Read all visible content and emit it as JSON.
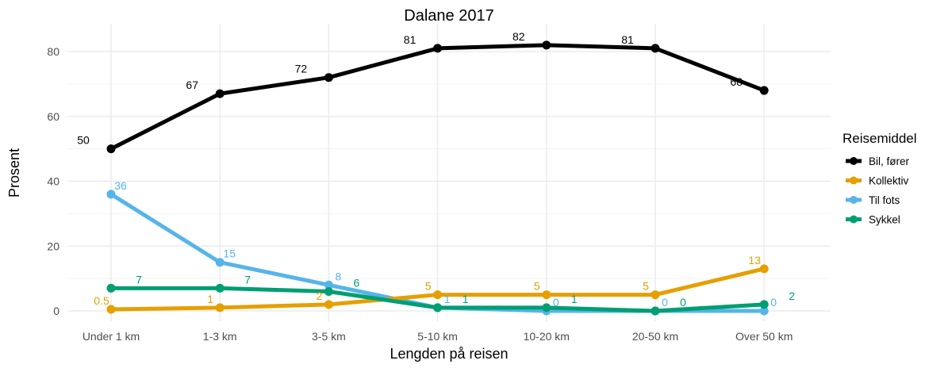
{
  "chart_data": {
    "type": "line",
    "title": "Dalane 2017",
    "xlabel": "Lengden på reisen",
    "ylabel": "Prosent",
    "categories": [
      "Under 1 km",
      "1-3 km",
      "3-5 km",
      "5-10 km",
      "10-20 km",
      "20-50 km",
      "Over 50 km"
    ],
    "yticks": [
      0,
      20,
      40,
      60,
      80
    ],
    "ylim": [
      -3,
      86
    ],
    "grid": true,
    "legend_title": "Reisemiddel",
    "legend_position": "right",
    "series": [
      {
        "name": "Bil, fører",
        "color": "#000000",
        "values": [
          50,
          67,
          72,
          81,
          82,
          81,
          68
        ],
        "labels": [
          "50",
          "67",
          "72",
          "81",
          "82",
          "81",
          "68"
        ]
      },
      {
        "name": "Kollektiv",
        "color": "#E69F00",
        "values": [
          0.5,
          1,
          2,
          5,
          5,
          5,
          13
        ],
        "labels": [
          "0.5",
          "1",
          "2",
          "5",
          "5",
          "5",
          "13"
        ]
      },
      {
        "name": "Til fots",
        "color": "#56B4E9",
        "values": [
          36,
          15,
          8,
          1,
          0,
          0,
          0
        ],
        "labels": [
          "36",
          "15",
          "8",
          "1",
          "0",
          "0",
          "0"
        ]
      },
      {
        "name": "Sykkel",
        "color": "#009E73",
        "values": [
          7,
          7,
          6,
          1,
          1,
          0,
          2
        ],
        "labels": [
          "7",
          "7",
          "6",
          "1",
          "1",
          "0",
          "2"
        ]
      }
    ]
  }
}
